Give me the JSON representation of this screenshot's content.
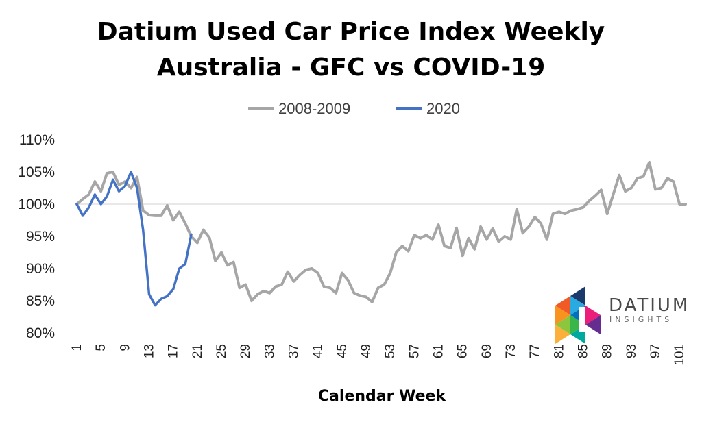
{
  "chart_data": {
    "type": "line",
    "title": "Datium Used Car Price Index Weekly",
    "subtitle": "Australia - GFC vs COVID-19",
    "xlabel": "Calendar Week",
    "ylabel": "",
    "ylim": [
      0.8,
      1.1
    ],
    "yticks": [
      "80%",
      "85%",
      "90%",
      "95%",
      "100%",
      "105%",
      "110%"
    ],
    "xticks": [
      1,
      5,
      9,
      13,
      17,
      21,
      25,
      29,
      33,
      37,
      41,
      45,
      49,
      53,
      57,
      61,
      65,
      69,
      73,
      77,
      81,
      85,
      89,
      93,
      97,
      101
    ],
    "xrange": [
      1,
      102
    ],
    "legend_position": "top-center",
    "series": [
      {
        "name": "2008-2009",
        "color": "#a6a6a6",
        "x": [
          1,
          2,
          3,
          4,
          5,
          6,
          7,
          8,
          9,
          10,
          11,
          12,
          13,
          14,
          15,
          16,
          17,
          18,
          19,
          20,
          21,
          22,
          23,
          24,
          25,
          26,
          27,
          28,
          29,
          30,
          31,
          32,
          33,
          34,
          35,
          36,
          37,
          38,
          39,
          40,
          41,
          42,
          43,
          44,
          45,
          46,
          47,
          48,
          49,
          50,
          51,
          52,
          53,
          54,
          55,
          56,
          57,
          58,
          59,
          60,
          61,
          62,
          63,
          64,
          65,
          66,
          67,
          68,
          69,
          70,
          71,
          72,
          73,
          74,
          75,
          76,
          77,
          78,
          79,
          80,
          81,
          82,
          83,
          84,
          85,
          86,
          87,
          88,
          89,
          90,
          91,
          92,
          93,
          94,
          95,
          96,
          97,
          98,
          99,
          100,
          101,
          102
        ],
        "values": [
          1.0,
          1.008,
          1.015,
          1.035,
          1.02,
          1.048,
          1.05,
          1.03,
          1.035,
          1.025,
          1.042,
          0.99,
          0.983,
          0.982,
          0.982,
          0.998,
          0.975,
          0.988,
          0.97,
          0.95,
          0.94,
          0.96,
          0.948,
          0.912,
          0.925,
          0.905,
          0.91,
          0.87,
          0.875,
          0.85,
          0.86,
          0.865,
          0.862,
          0.872,
          0.875,
          0.895,
          0.88,
          0.89,
          0.898,
          0.9,
          0.893,
          0.872,
          0.87,
          0.862,
          0.893,
          0.882,
          0.862,
          0.858,
          0.856,
          0.848,
          0.87,
          0.875,
          0.893,
          0.925,
          0.935,
          0.927,
          0.952,
          0.947,
          0.952,
          0.945,
          0.968,
          0.935,
          0.932,
          0.963,
          0.92,
          0.947,
          0.93,
          0.965,
          0.945,
          0.962,
          0.942,
          0.95,
          0.945,
          0.992,
          0.955,
          0.965,
          0.98,
          0.97,
          0.945,
          0.985,
          0.988,
          0.985,
          0.99,
          0.992,
          0.995,
          1.005,
          1.013,
          1.022,
          0.985,
          1.015,
          1.045,
          1.02,
          1.025,
          1.04,
          1.043,
          1.065,
          1.023,
          1.025,
          1.04,
          1.035,
          1.0,
          1.0
        ]
      },
      {
        "name": "2020",
        "color": "#4472c4",
        "x": [
          1,
          2,
          3,
          4,
          5,
          6,
          7,
          8,
          9,
          10,
          11,
          12,
          13,
          14,
          15,
          16,
          17,
          18,
          19,
          20
        ],
        "values": [
          1.0,
          0.982,
          0.995,
          1.015,
          1.0,
          1.012,
          1.038,
          1.02,
          1.028,
          1.05,
          1.025,
          0.96,
          0.86,
          0.843,
          0.853,
          0.857,
          0.868,
          0.9,
          0.907,
          0.953
        ]
      }
    ]
  },
  "logo": {
    "name": "DATIUM",
    "tagline": "INSIGHTS"
  }
}
